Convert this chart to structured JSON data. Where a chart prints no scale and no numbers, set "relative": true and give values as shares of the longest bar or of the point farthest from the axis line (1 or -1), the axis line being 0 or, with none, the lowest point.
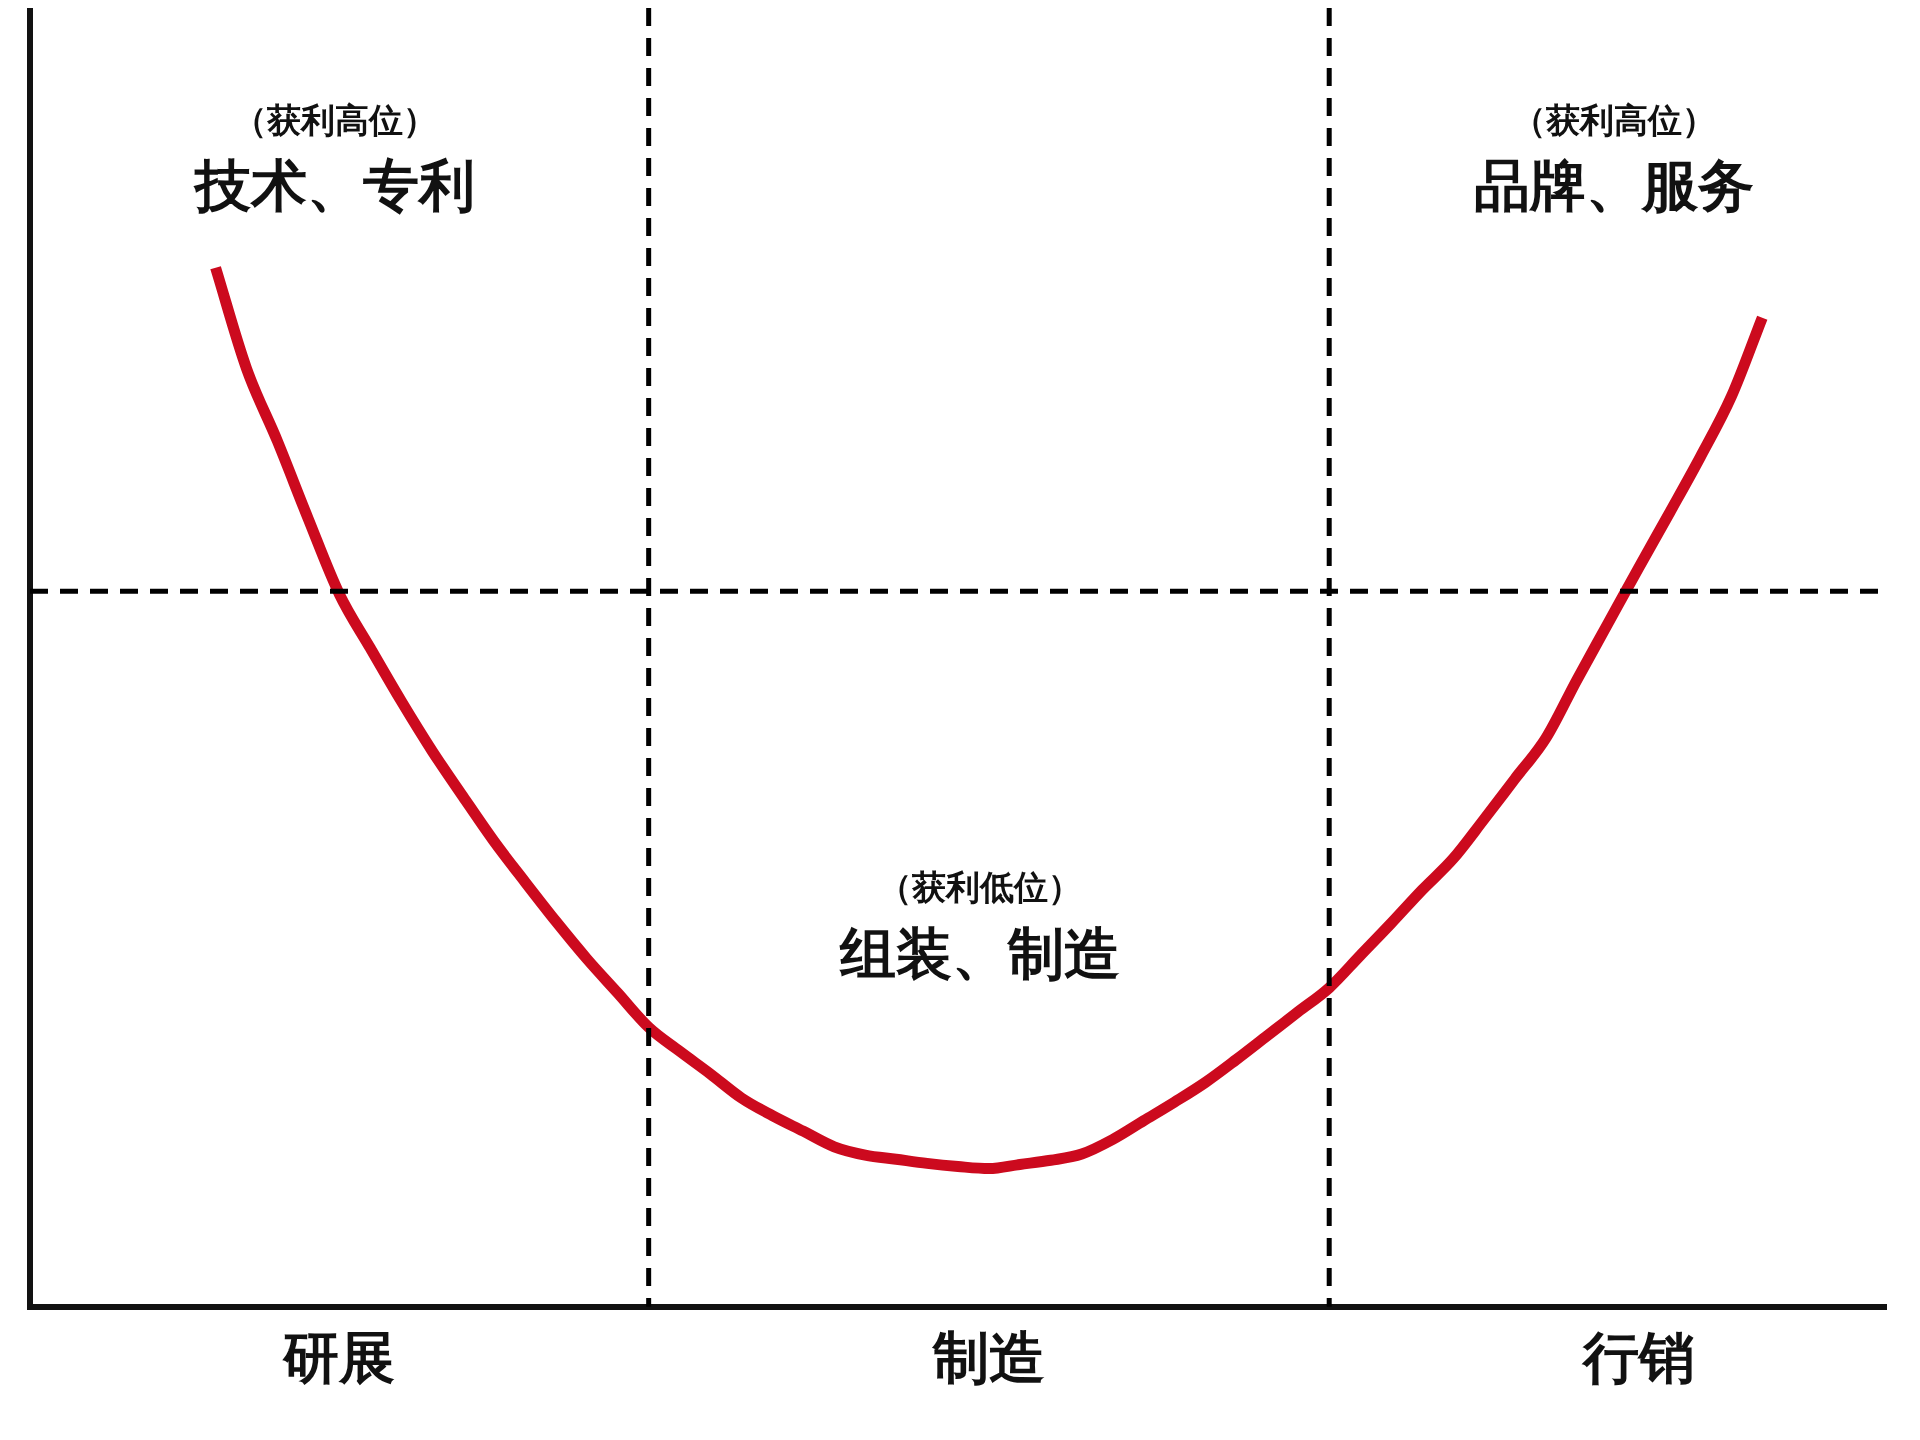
{
  "chart_data": {
    "type": "line",
    "relative": true,
    "categories": [
      null,
      null,
      null,
      null,
      null,
      null,
      null,
      null,
      null,
      null,
      "研展",
      null,
      null,
      null,
      null,
      null,
      null,
      null,
      null,
      null,
      null,
      null,
      null,
      null,
      null,
      null,
      null,
      null,
      null,
      null,
      null,
      "制造",
      null,
      null,
      null,
      null,
      null,
      null,
      null,
      null,
      null,
      null,
      null,
      null,
      null,
      null,
      null,
      null,
      null,
      null,
      null,
      null,
      "行销",
      null,
      null,
      null,
      null,
      null,
      null,
      null,
      null
    ],
    "series": [
      {
        "color": "#cc0a1e",
        "values": [
          null,
          null,
          null,
          null,
          null,
          null,
          1.0,
          0.903,
          0.833,
          0.758,
          0.686,
          0.634,
          0.583,
          0.535,
          0.491,
          0.448,
          0.409,
          0.371,
          0.335,
          0.302,
          0.269,
          0.246,
          0.224,
          0.201,
          0.184,
          0.169,
          0.154,
          0.146,
          0.142,
          0.138,
          0.135,
          0.133,
          0.137,
          0.141,
          0.147,
          0.161,
          0.179,
          0.197,
          0.216,
          0.238,
          0.261,
          0.284,
          0.307,
          0.338,
          0.369,
          0.401,
          0.431,
          0.469,
          0.508,
          0.547,
          0.603,
          0.657,
          0.711,
          0.764,
          0.818,
          0.876,
          0.952,
          null,
          null,
          null,
          null
        ]
      }
    ],
    "annotations": [
      "（获利高位）",
      "技术、专利",
      "（获利低位）",
      "组装、制造",
      "（获利高位）",
      "品牌、服务"
    ],
    "grid": false,
    "legend": false,
    "marker": "none",
    "line_style": "solid"
  }
}
